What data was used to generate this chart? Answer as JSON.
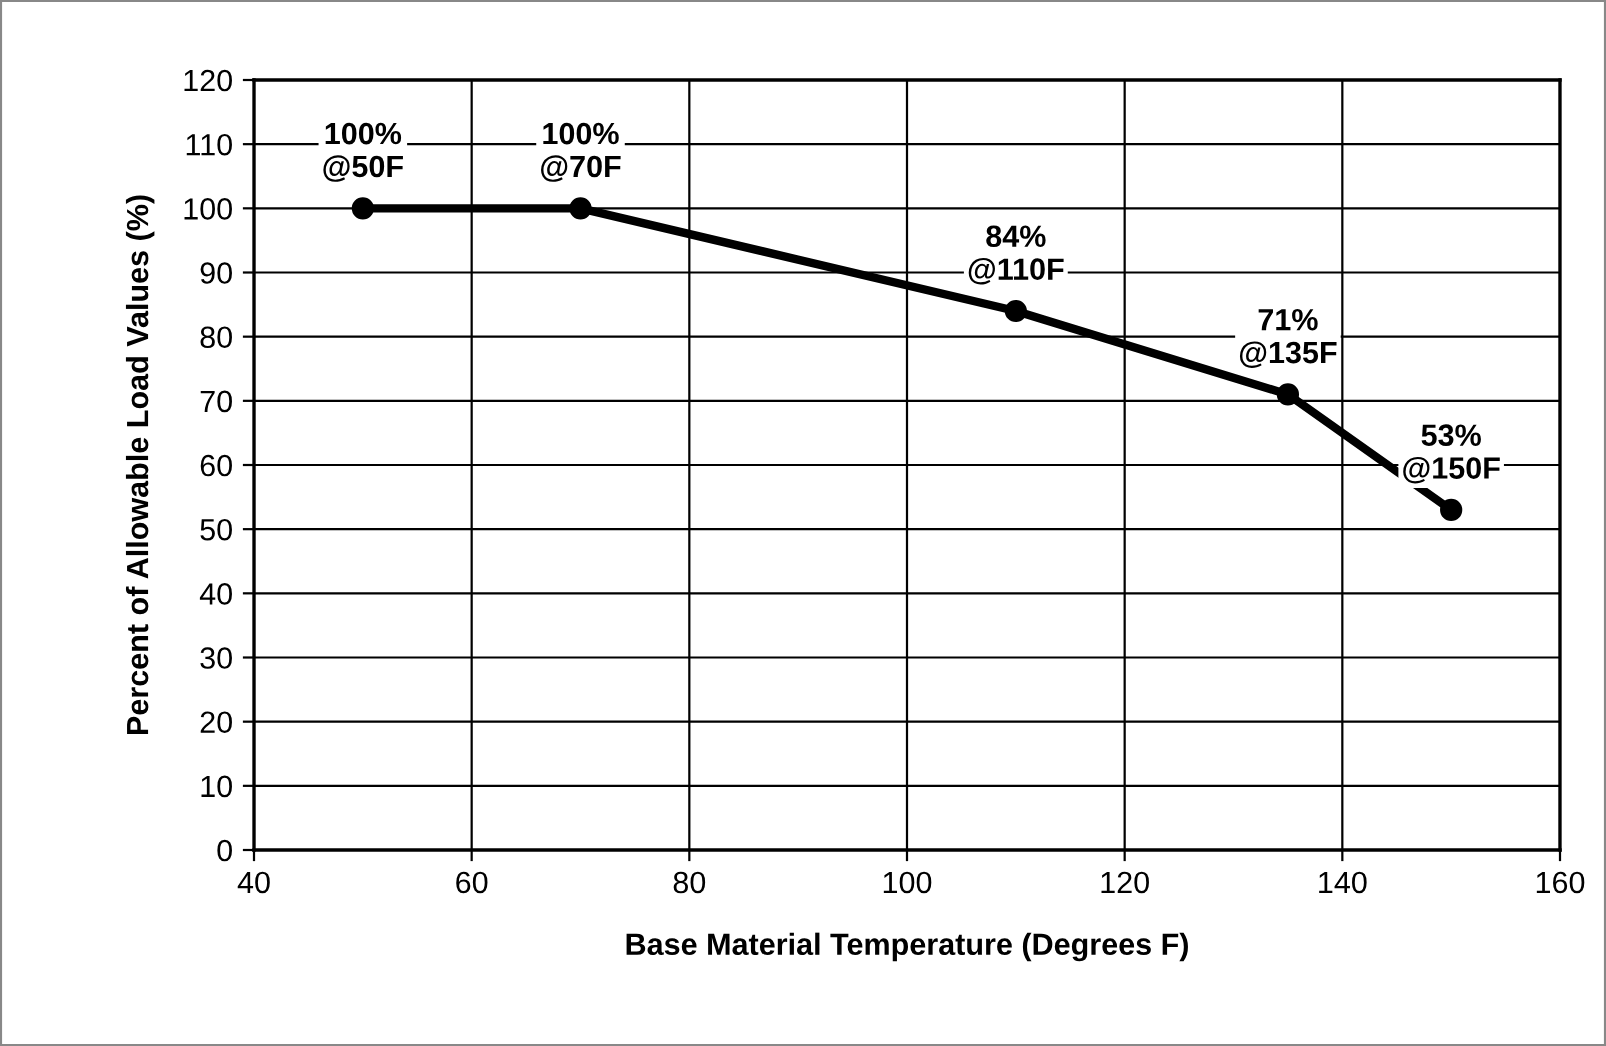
{
  "chart_data": {
    "type": "line",
    "xlabel": "Base Material Temperature (Degrees F)",
    "ylabel": "Percent of Allowable Load Values (%)",
    "x": [
      50,
      70,
      110,
      135,
      150
    ],
    "series": [
      {
        "color": "#000000",
        "values": [
          100,
          100,
          84,
          71,
          53
        ],
        "value_labels": [
          "100%\n@50F",
          "100%\n@70F",
          "84%\n@110F",
          "71%\n@135F",
          "53%\n@150F"
        ]
      }
    ],
    "xlim": [
      40,
      160
    ],
    "xticks": [
      40,
      60,
      80,
      100,
      120,
      140,
      160
    ],
    "ylim": [
      0,
      120
    ],
    "yticks": [
      0,
      10,
      20,
      30,
      40,
      50,
      60,
      70,
      80,
      90,
      100,
      110,
      120
    ],
    "grid": true,
    "marker": "circle",
    "line_style": "solid",
    "legend": false
  }
}
